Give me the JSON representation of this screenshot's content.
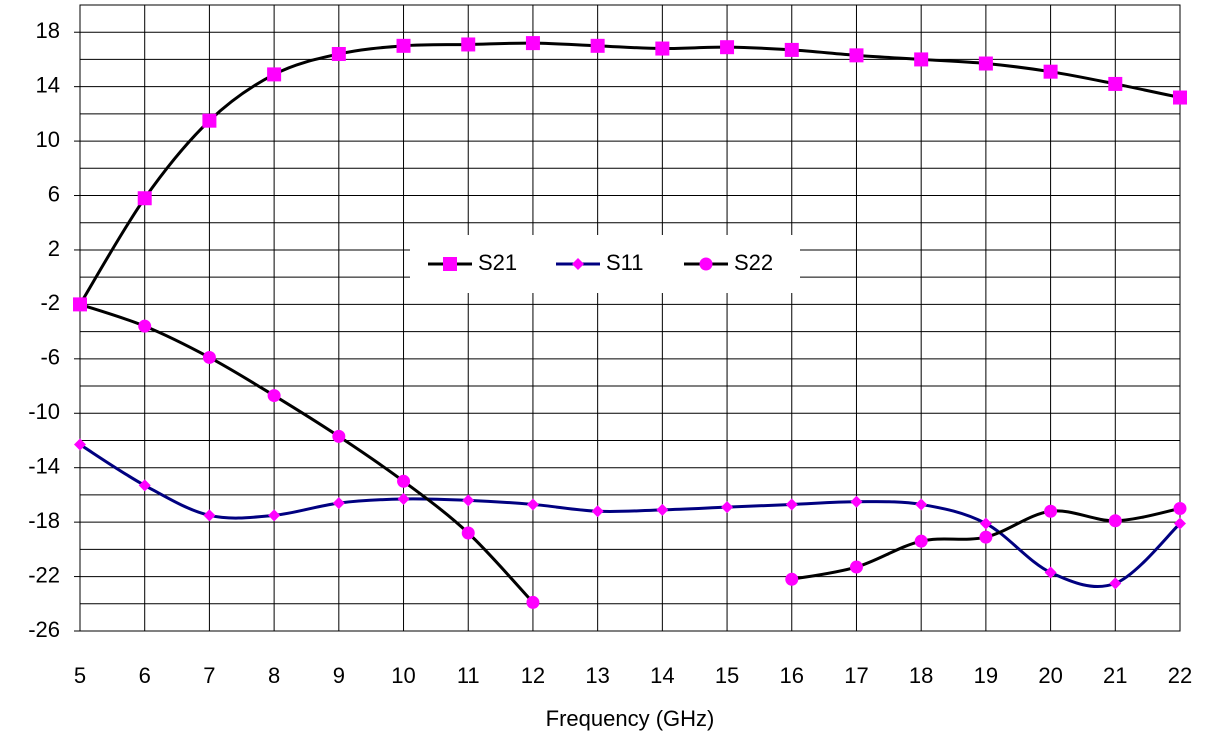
{
  "chart_data": {
    "type": "line",
    "x_label": "Frequency (GHz)",
    "x": [
      5,
      6,
      7,
      8,
      9,
      10,
      11,
      12,
      13,
      14,
      15,
      16,
      17,
      18,
      19,
      20,
      21,
      22
    ],
    "xlim": [
      5,
      22
    ],
    "xticks": [
      5,
      6,
      7,
      8,
      9,
      10,
      11,
      12,
      13,
      14,
      15,
      16,
      17,
      18,
      19,
      20,
      21,
      22
    ],
    "ylim": [
      -26,
      20
    ],
    "yticks": [
      -26,
      -22,
      -18,
      -14,
      -10,
      -6,
      -2,
      2,
      6,
      10,
      14,
      18
    ],
    "ygrid": [
      -26,
      -24,
      -22,
      -20,
      -18,
      -16,
      -14,
      -12,
      -10,
      -8,
      -6,
      -4,
      -2,
      0,
      2,
      4,
      6,
      8,
      10,
      12,
      14,
      16,
      18,
      20
    ],
    "grid": true,
    "legend": "center",
    "series": [
      {
        "name": "S21",
        "color": "#000000",
        "marker": "square",
        "marker_color": "#ff00ff",
        "values": [
          -2.0,
          5.8,
          11.5,
          14.9,
          16.4,
          17.0,
          17.1,
          17.2,
          17.0,
          16.8,
          16.9,
          16.7,
          16.3,
          16.0,
          15.7,
          15.1,
          14.2,
          13.2
        ]
      },
      {
        "name": "S11",
        "color": "#000080",
        "marker": "diamond",
        "marker_color": "#ff00ff",
        "values": [
          -12.3,
          -15.3,
          -17.5,
          -17.5,
          -16.6,
          -16.3,
          -16.4,
          -16.7,
          -17.2,
          -17.1,
          -16.9,
          -16.7,
          -16.5,
          -16.7,
          -18.1,
          -21.7,
          -22.5,
          -18.1
        ]
      },
      {
        "name": "S22",
        "color": "#000000",
        "marker": "circle",
        "marker_color": "#ff00ff",
        "values": [
          -2.0,
          -3.6,
          -5.9,
          -8.7,
          -11.7,
          -15.0,
          -18.8,
          -23.9,
          null,
          null,
          null,
          -22.2,
          -21.3,
          -19.4,
          -19.1,
          -17.2,
          -17.9,
          -17.0
        ]
      }
    ]
  }
}
